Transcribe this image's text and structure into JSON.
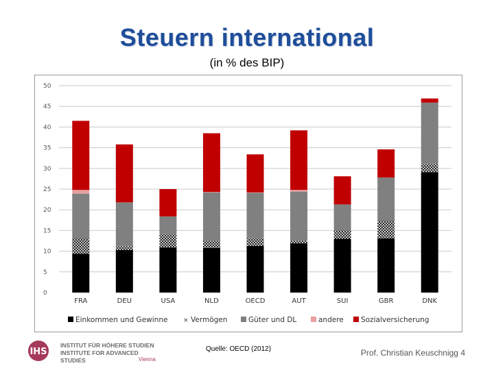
{
  "slide": {
    "title": "Steuern international",
    "subtitle": "(in % des BIP)",
    "source": "Quelle: OECD (2012)",
    "author": "Prof. Christian Keuschnigg 4"
  },
  "logo": {
    "mark": "IHS",
    "line1": "INSTITUT FÜR HÖHERE STUDIEN",
    "line2": "INSTITUTE FOR ADVANCED STUDIES",
    "city": "Vienna"
  },
  "chart_data": {
    "type": "bar",
    "stacked": true,
    "title": "",
    "xlabel": "",
    "ylabel": "",
    "ylim": [
      0,
      50
    ],
    "yticks": [
      0,
      5,
      10,
      15,
      20,
      25,
      30,
      35,
      40,
      45,
      50
    ],
    "grid": true,
    "legend_position": "bottom",
    "categories": [
      "FRA",
      "DEU",
      "USA",
      "NLD",
      "OECD",
      "AUT",
      "SUI",
      "GBR",
      "DNK"
    ],
    "series": [
      {
        "name": "Einkommen und Gewinne",
        "color": "#000000",
        "pattern": "solid",
        "values": [
          9.4,
          10.3,
          10.9,
          10.8,
          11.3,
          11.9,
          13.0,
          13.1,
          29.1
        ]
      },
      {
        "name": "Vermögen",
        "color": "#ffffff",
        "pattern": "crosshatch",
        "values": [
          3.6,
          0.9,
          3.2,
          1.7,
          1.8,
          0.6,
          2.0,
          4.2,
          1.9
        ]
      },
      {
        "name": "Güter und DL",
        "color": "#808080",
        "pattern": "solid",
        "values": [
          10.9,
          10.6,
          4.3,
          11.7,
          11.0,
          11.9,
          6.3,
          10.5,
          14.9
        ]
      },
      {
        "name": "andere",
        "color": "#e8a0a0",
        "pattern": "solid",
        "values": [
          0.9,
          0.0,
          0.0,
          0.1,
          0.1,
          0.4,
          0.0,
          0.0,
          0.0
        ]
      },
      {
        "name": "Sozialversicherung",
        "color": "#c00000",
        "pattern": "solid",
        "values": [
          16.7,
          14.0,
          6.6,
          14.2,
          9.2,
          14.4,
          6.8,
          6.8,
          1.0
        ]
      }
    ]
  }
}
